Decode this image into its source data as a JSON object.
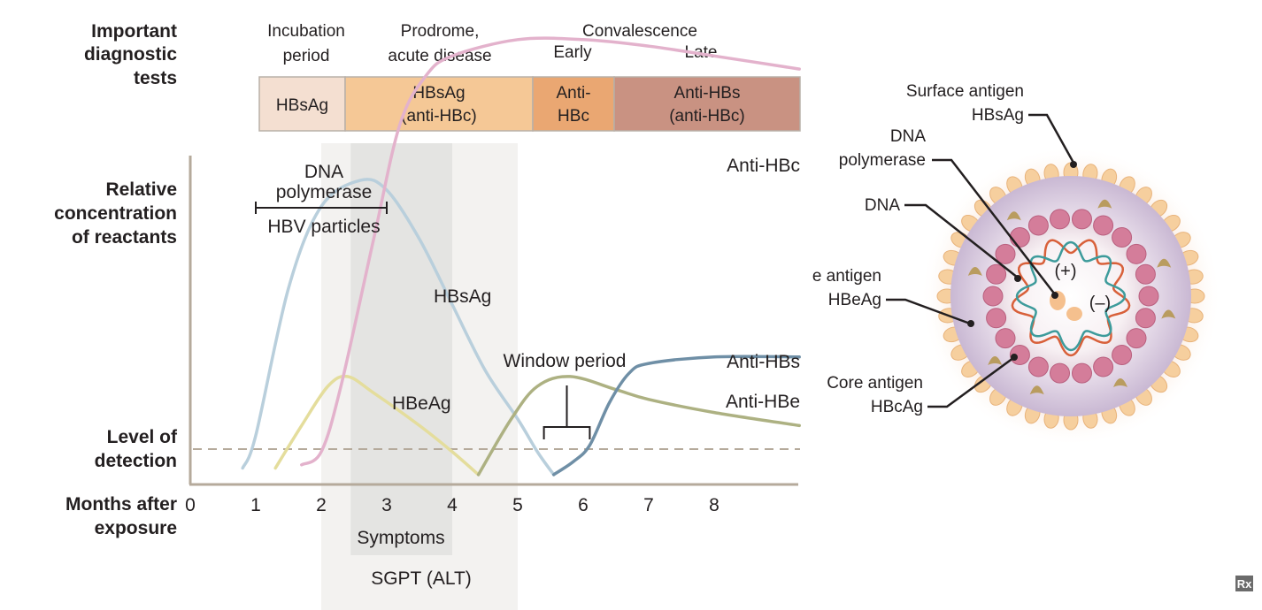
{
  "header": {
    "tests_label": [
      "Important",
      "diagnostic",
      "tests"
    ],
    "phases": {
      "incubation": [
        "Incubation",
        "period"
      ],
      "prodrome": [
        "Prodrome,",
        "acute disease"
      ],
      "convalescence": "Convalescence",
      "early": "Early",
      "late": "Late"
    },
    "test_boxes": [
      {
        "lines": [
          "HBsAg"
        ],
        "color": "#f4dfd1"
      },
      {
        "lines": [
          "HBsAg",
          "(anti-HBc)"
        ],
        "color": "#f5c896"
      },
      {
        "lines": [
          "Anti-",
          "HBc"
        ],
        "color": "#eaa772"
      },
      {
        "lines": [
          "Anti-HBs",
          "(anti-HBc)"
        ],
        "color": "#c99282"
      }
    ]
  },
  "chart": {
    "ylabel": [
      "Relative",
      "concentration",
      "of reactants"
    ],
    "detection_label": [
      "Level of",
      "detection"
    ],
    "xlabel": [
      "Months after",
      "exposure"
    ],
    "x_ticks": [
      "0",
      "1",
      "2",
      "3",
      "4",
      "5",
      "6",
      "7",
      "8"
    ],
    "dna_polymerase_label": [
      "DNA",
      "polymerase"
    ],
    "hbv_particles_label": "HBV particles",
    "window_period_label": "Window period",
    "symptoms_label": "Symptoms",
    "sgpt_label": "SGPT (ALT)"
  },
  "chart_data": {
    "type": "line",
    "xlabel": "Months after exposure",
    "ylabel": "Relative concentration of reactants",
    "xlim": [
      0,
      9.3
    ],
    "x_ticks": [
      0,
      1,
      2,
      3,
      4,
      5,
      6,
      7,
      8
    ],
    "detection_level_label": "Level of detection",
    "shaded_bands": [
      {
        "label": "SGPT (ALT)",
        "x": [
          2.0,
          5.0
        ]
      },
      {
        "label": "Symptoms",
        "x": [
          2.45,
          4.0
        ]
      }
    ],
    "bracket_annotations": [
      {
        "label": "DNA polymerase / HBV particles",
        "x": [
          1.0,
          3.0
        ]
      },
      {
        "label": "Window period",
        "x": [
          5.4,
          6.1
        ]
      }
    ],
    "series": [
      {
        "name": "HBsAg",
        "color": "#b9cfdc",
        "points": [
          [
            0.8,
            0.05
          ],
          [
            1.0,
            0.15
          ],
          [
            1.5,
            0.6
          ],
          [
            2.0,
            0.85
          ],
          [
            2.6,
            0.93
          ],
          [
            3.0,
            0.9
          ],
          [
            3.5,
            0.75
          ],
          [
            4.0,
            0.55
          ],
          [
            4.5,
            0.35
          ],
          [
            5.0,
            0.2
          ],
          [
            5.3,
            0.1
          ],
          [
            5.55,
            0.03
          ]
        ]
      },
      {
        "name": "HBeAg",
        "color": "#e4dd9c",
        "points": [
          [
            1.3,
            0.05
          ],
          [
            1.7,
            0.18
          ],
          [
            2.1,
            0.3
          ],
          [
            2.4,
            0.33
          ],
          [
            2.8,
            0.28
          ],
          [
            3.5,
            0.18
          ],
          [
            4.0,
            0.1
          ],
          [
            4.4,
            0.03
          ]
        ]
      },
      {
        "name": "Anti-HBc",
        "color": "#e3b2cc",
        "points": [
          [
            1.7,
            0.06
          ],
          [
            2.0,
            0.1
          ],
          [
            2.3,
            0.3
          ],
          [
            2.8,
            0.75
          ],
          [
            3.2,
            1.1
          ],
          [
            3.6,
            1.25
          ],
          [
            4.0,
            1.31
          ],
          [
            5.0,
            1.36
          ],
          [
            6.0,
            1.36
          ],
          [
            7.0,
            1.34
          ],
          [
            8.0,
            1.31
          ],
          [
            9.3,
            1.27
          ]
        ]
      },
      {
        "name": "Anti-HBe",
        "color": "#adb182",
        "points": [
          [
            4.4,
            0.03
          ],
          [
            4.9,
            0.2
          ],
          [
            5.3,
            0.3
          ],
          [
            5.8,
            0.33
          ],
          [
            6.5,
            0.29
          ],
          [
            7.0,
            0.26
          ],
          [
            8.0,
            0.22
          ],
          [
            9.3,
            0.18
          ]
        ]
      },
      {
        "name": "Anti-HBs",
        "color": "#6f8fa6",
        "points": [
          [
            5.55,
            0.03
          ],
          [
            5.85,
            0.07
          ],
          [
            6.1,
            0.12
          ],
          [
            6.4,
            0.25
          ],
          [
            6.7,
            0.34
          ],
          [
            7.0,
            0.37
          ],
          [
            8.0,
            0.39
          ],
          [
            9.3,
            0.39
          ]
        ]
      }
    ]
  },
  "virion": {
    "surface_antigen": [
      "Surface antigen",
      "HBsAg"
    ],
    "dna_polymerase": [
      "DNA",
      "polymerase"
    ],
    "dna": "DNA",
    "e_antigen": [
      "e antigen",
      "HBeAg"
    ],
    "core_antigen": [
      "Core antigen",
      "HBcAg"
    ],
    "plus_strand": "(+)",
    "minus_strand": "(–)"
  },
  "logo": "Rx"
}
